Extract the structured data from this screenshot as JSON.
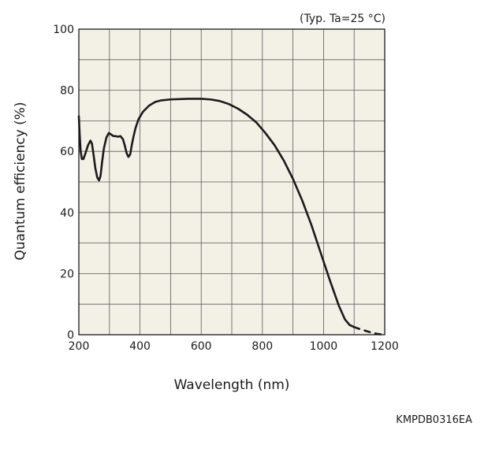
{
  "chart_data": {
    "type": "line",
    "title": "",
    "annotation": "(Typ. Ta=25 °C)",
    "xlabel": "Wavelength (nm)",
    "ylabel": "Quantum efficiency (%)",
    "xlim": [
      200,
      1200
    ],
    "ylim": [
      0,
      100
    ],
    "x_ticks": [
      200,
      400,
      600,
      800,
      1000,
      1200
    ],
    "y_ticks": [
      0,
      20,
      40,
      60,
      80,
      100
    ],
    "x_grid_step": 100,
    "y_grid_step": 10,
    "grid": true,
    "series": [
      {
        "style": "solid",
        "x": [
          200,
          203,
          206,
          210,
          215,
          222,
          230,
          238,
          243,
          248,
          254,
          260,
          266,
          271,
          276,
          282,
          290,
          298,
          306,
          313,
          320,
          328,
          336,
          344,
          350,
          356,
          362,
          368,
          373,
          378,
          385,
          395,
          410,
          430,
          450,
          470,
          500,
          530,
          560,
          600,
          630,
          660,
          690,
          720,
          750,
          780,
          810,
          840,
          870,
          900,
          930,
          960,
          990,
          1020,
          1050,
          1070,
          1085,
          1100
        ],
        "y": [
          71.5,
          65,
          60,
          57.5,
          57.5,
          59.5,
          62,
          63.5,
          62.5,
          59,
          54.5,
          51.5,
          50.5,
          52,
          56.5,
          61,
          64.5,
          66,
          65.5,
          65,
          65,
          64.8,
          65,
          64,
          62,
          59.5,
          58.2,
          59,
          62,
          64.5,
          67.5,
          70.5,
          73,
          75,
          76.2,
          76.7,
          77,
          77.1,
          77.2,
          77.2,
          77,
          76.5,
          75.5,
          74,
          72,
          69.5,
          66,
          62,
          57,
          51,
          44,
          36,
          27,
          18,
          9.5,
          5,
          3.2,
          2.5
        ]
      },
      {
        "style": "dashed",
        "x": [
          1100,
          1120,
          1140,
          1160,
          1180,
          1200
        ],
        "y": [
          2.5,
          1.8,
          1.2,
          0.6,
          0.2,
          0
        ]
      }
    ]
  },
  "figure_code": "KMPDB0316EA",
  "colors": {
    "background": "#ffffff",
    "plot_area": "#f3f1e6",
    "grid": "#5a5a5a",
    "line": "#1a1a1a"
  }
}
